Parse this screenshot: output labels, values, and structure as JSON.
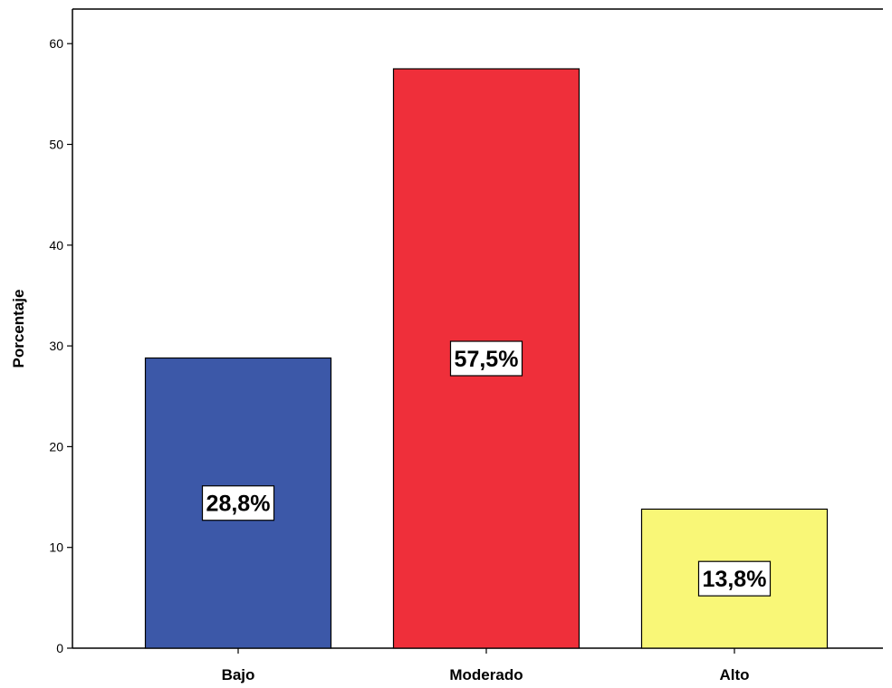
{
  "chart_data": {
    "type": "bar",
    "ylabel": "Porcentaje",
    "xlabel": "",
    "ylim": [
      0,
      65
    ],
    "yticks": [
      0,
      10,
      20,
      30,
      40,
      50,
      60
    ],
    "categories": [
      "Bajo",
      "Moderado",
      "Alto"
    ],
    "values": [
      28.8,
      57.5,
      13.8
    ],
    "data_labels": [
      "28,8%",
      "57,5%",
      "13,8%"
    ],
    "colors": [
      "#3c58a8",
      "#ef2f3a",
      "#f9f777"
    ],
    "grid": false,
    "legend": "none"
  }
}
